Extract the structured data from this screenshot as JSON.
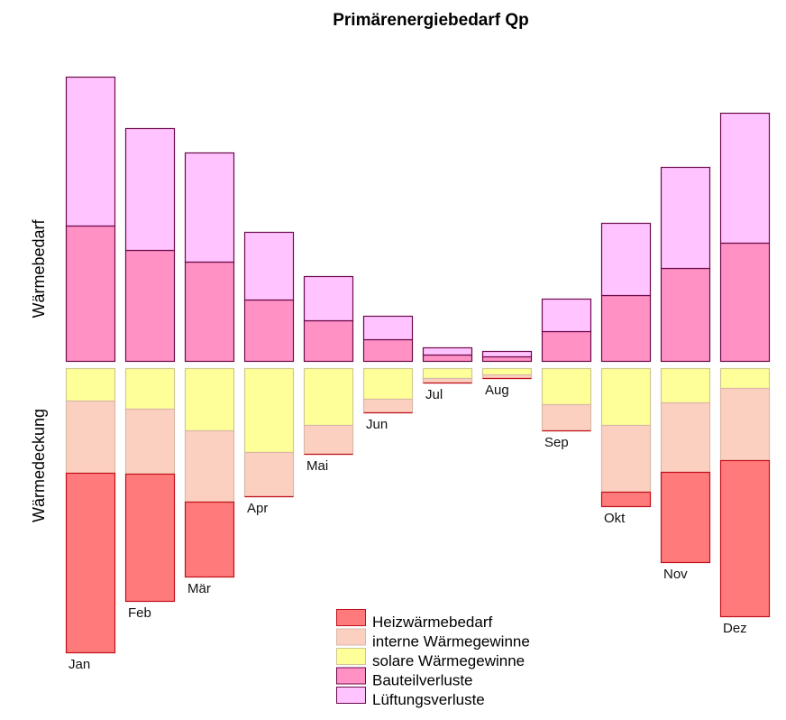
{
  "chart_data": {
    "type": "bar",
    "subtype": "stacked-diverging",
    "title": "Primärenergiebedarf Qp",
    "ylabel_upper": "Wärmebedarf",
    "ylabel_lower": "Wärmedeckung",
    "xlabel": "",
    "grid": false,
    "legend_position": "bottom-center",
    "units": "relative (no axis scale shown)",
    "categories": [
      "Jan",
      "Feb",
      "Mär",
      "Apr",
      "Mai",
      "Jun",
      "Jul",
      "Aug",
      "Sep",
      "Okt",
      "Nov",
      "Dez"
    ],
    "series": [
      {
        "name": "Heizwärmebedarf",
        "group": "lower",
        "color": "#ff7b7b",
        "border": "#c0101a",
        "values": [
          199,
          141,
          83,
          0,
          0,
          0,
          0,
          0,
          0,
          16,
          100,
          173
        ]
      },
      {
        "name": "interne Wärmegewinne",
        "group": "lower",
        "color": "#fcd0c0",
        "border": "#d8b8a8",
        "values": [
          80,
          72,
          79,
          49,
          32,
          15,
          5,
          4,
          29,
          74,
          77,
          80
        ]
      },
      {
        "name": "solare Wärmegewinne",
        "group": "lower",
        "color": "#ffff99",
        "border": "#cfc890",
        "values": [
          36,
          45,
          69,
          93,
          63,
          34,
          11,
          7,
          40,
          63,
          38,
          22
        ]
      },
      {
        "name": "Bauteilverluste",
        "group": "upper",
        "color": "#ff91c4",
        "border": "#6b0a4a",
        "values": [
          150,
          123,
          110,
          68,
          45,
          24,
          7,
          5,
          33,
          73,
          103,
          131
        ]
      },
      {
        "name": "Lüftungsverluste",
        "group": "upper",
        "color": "#ffc3ff",
        "border": "#6b0a4a",
        "values": [
          165,
          135,
          121,
          75,
          49,
          26,
          8,
          6,
          36,
          80,
          112,
          144
        ]
      }
    ],
    "legend_order": [
      "Heizwärmebedarf",
      "interne Wärmegewinne",
      "solare Wärmegewinne",
      "Bauteilverluste",
      "Lüftungsverluste"
    ]
  }
}
